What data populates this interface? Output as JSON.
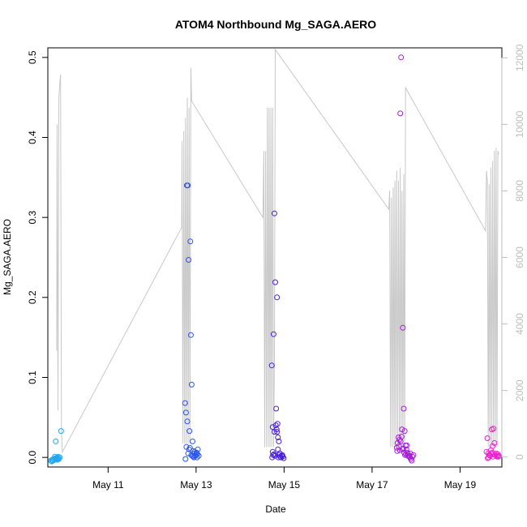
{
  "chart_data": {
    "type": "scatter",
    "title": "ATOM4 Northbound Mg_SAGA.AERO",
    "xlabel": "Date",
    "ylabel": "Mg_SAGA.AERO",
    "x_unit": "day of May 2018 (fractional)",
    "xlim": [
      9.63,
      19.95
    ],
    "ylim": [
      -0.012,
      0.512
    ],
    "x_ticks": [
      {
        "value": 11,
        "label": "May 11"
      },
      {
        "value": 13,
        "label": "May 13"
      },
      {
        "value": 15,
        "label": "May 15"
      },
      {
        "value": 17,
        "label": "May 17"
      },
      {
        "value": 19,
        "label": "May 19"
      }
    ],
    "y_ticks": [
      {
        "value": 0.0,
        "label": "0.0"
      },
      {
        "value": 0.1,
        "label": "0.1"
      },
      {
        "value": 0.2,
        "label": "0.2"
      },
      {
        "value": 0.3,
        "label": "0.3"
      },
      {
        "value": 0.4,
        "label": "0.4"
      },
      {
        "value": 0.5,
        "label": "0.5"
      }
    ],
    "y2lim": [
      -300,
      12300
    ],
    "y2_ticks": [
      {
        "value": 0,
        "label": "0"
      },
      {
        "value": 2000,
        "label": "2000"
      },
      {
        "value": 4000,
        "label": "4000"
      },
      {
        "value": 6000,
        "label": "6000"
      },
      {
        "value": 8000,
        "label": "8000"
      },
      {
        "value": 10000,
        "label": "10000"
      },
      {
        "value": 12000,
        "label": "12000"
      }
    ],
    "grid": false,
    "legend": "none",
    "colors": {
      "secondary_line": "#c8c8c8",
      "secondary_axis": "#bdbdbd",
      "flight_colors": [
        "#22a7f0",
        "#2a55ee",
        "#4a1fd6",
        "#a51ed6",
        "#f01ecf"
      ]
    },
    "secondary_series": {
      "type": "line",
      "x": [
        9.83,
        9.84,
        9.86,
        9.88,
        9.9,
        9.92,
        9.94,
        9.96,
        12.67,
        12.68,
        12.7,
        12.72,
        12.74,
        12.76,
        12.78,
        12.8,
        12.82,
        12.84,
        12.86,
        12.88,
        12.9,
        14.52,
        14.54,
        14.56,
        14.58,
        14.6,
        14.62,
        14.64,
        14.66,
        14.68,
        14.7,
        14.72,
        14.74,
        14.76,
        14.78,
        14.8,
        17.38,
        17.4,
        17.42,
        17.44,
        17.46,
        17.48,
        17.5,
        17.52,
        17.54,
        17.56,
        17.58,
        17.6,
        17.62,
        17.64,
        17.66,
        17.68,
        17.7,
        17.72,
        17.74,
        17.76,
        19.58,
        19.6,
        19.62,
        19.64,
        19.66,
        19.68,
        19.7,
        19.72,
        19.74,
        19.76,
        19.78,
        19.8,
        19.82,
        19.84,
        19.86,
        19.88
      ],
      "y": [
        3200,
        10000,
        1400,
        10800,
        11200,
        11500,
        800,
        150,
        6900,
        9500,
        400,
        9800,
        400,
        10200,
        400,
        10800,
        400,
        10500,
        400,
        11700,
        10700,
        7200,
        9200,
        300,
        9200,
        300,
        10500,
        300,
        10500,
        300,
        10500,
        300,
        10500,
        300,
        3000,
        12250,
        7450,
        8000,
        300,
        7800,
        300,
        8100,
        300,
        8300,
        300,
        8600,
        300,
        8300,
        300,
        8700,
        300,
        8000,
        300,
        8500,
        300,
        11100,
        6800,
        8600,
        8300,
        300,
        8200,
        300,
        8700,
        300,
        8900,
        300,
        9200,
        300,
        9300,
        300,
        9200,
        9100
      ]
    },
    "series": [
      {
        "x": [
          9.7,
          9.73,
          9.76,
          9.78,
          9.8,
          9.82,
          9.84,
          9.86,
          9.88,
          9.9,
          9.72,
          9.79,
          9.85,
          9.81,
          9.83,
          9.87,
          9.75,
          9.93
        ],
        "y": [
          -0.004,
          -0.003,
          -0.002,
          -0.003,
          -0.001,
          -0.002,
          0.0,
          -0.001,
          -0.002,
          0.0,
          -0.005,
          0.001,
          -0.003,
          0.02,
          -0.001,
          0.001,
          -0.004,
          0.033
        ]
      },
      {
        "x": [
          12.75,
          12.77,
          12.79,
          12.8,
          12.81,
          12.83,
          12.85,
          12.87,
          12.88,
          12.84,
          12.86,
          12.9,
          12.92,
          12.94,
          12.96,
          12.98,
          13.0,
          13.02,
          13.04,
          13.06,
          12.78,
          12.82,
          12.89,
          12.95,
          13.01,
          12.76,
          12.93,
          13.03,
          12.97,
          12.91
        ],
        "y": [
          0.068,
          0.056,
          0.34,
          0.045,
          0.34,
          0.247,
          0.033,
          0.27,
          0.153,
          0.01,
          0.012,
          0.091,
          0.02,
          0.008,
          0.005,
          0.002,
          0.004,
          0.0,
          0.01,
          0.002,
          0.013,
          0.005,
          0.003,
          0.0,
          0.006,
          -0.002,
          0.001,
          0.004,
          0.007,
          0.002
        ]
      },
      {
        "x": [
          14.72,
          14.74,
          14.76,
          14.78,
          14.8,
          14.82,
          14.84,
          14.86,
          14.88,
          14.9,
          14.73,
          14.75,
          14.77,
          14.79,
          14.81,
          14.83,
          14.85,
          14.87,
          14.89,
          14.91,
          14.93,
          14.95,
          14.97,
          14.99,
          14.78,
          14.84,
          14.9,
          14.96,
          14.74,
          14.86
        ],
        "y": [
          0.115,
          0.038,
          0.154,
          0.305,
          0.219,
          0.061,
          0.2,
          0.025,
          0.02,
          0.005,
          0.0,
          0.003,
          0.004,
          0.002,
          0.04,
          0.035,
          0.042,
          0.0,
          0.003,
          0.001,
          0.0,
          0.002,
          0.001,
          -0.001,
          0.032,
          0.032,
          0.005,
          0.003,
          0.007,
          0.01
        ]
      },
      {
        "x": [
          17.56,
          17.58,
          17.6,
          17.62,
          17.64,
          17.66,
          17.68,
          17.7,
          17.72,
          17.74,
          17.76,
          17.78,
          17.8,
          17.82,
          17.84,
          17.86,
          17.88,
          17.9,
          17.92,
          17.94,
          17.57,
          17.61,
          17.65,
          17.69,
          17.73,
          17.77,
          17.81,
          17.85,
          17.63,
          17.75,
          17.79,
          17.67,
          17.87,
          17.71
        ],
        "y": [
          0.012,
          0.018,
          0.025,
          0.022,
          0.43,
          0.5,
          0.035,
          0.162,
          0.061,
          0.033,
          0.015,
          0.01,
          0.006,
          0.004,
          0.002,
          0.0,
          -0.002,
          -0.004,
          0.001,
          0.003,
          0.008,
          0.014,
          0.02,
          0.01,
          0.006,
          0.004,
          0.002,
          0.001,
          0.009,
          0.003,
          0.015,
          0.026,
          0.005,
          0.011
        ]
      },
      {
        "x": [
          19.6,
          19.62,
          19.64,
          19.66,
          19.68,
          19.7,
          19.72,
          19.74,
          19.76,
          19.78,
          19.8,
          19.82,
          19.84,
          19.86,
          19.88,
          19.63,
          19.67,
          19.71,
          19.75,
          19.79,
          19.83,
          19.87,
          19.65,
          19.73
        ],
        "y": [
          0.007,
          0.024,
          0.005,
          0.003,
          0.002,
          0.009,
          0.035,
          0.014,
          0.036,
          0.018,
          0.003,
          0.005,
          0.001,
          0.004,
          0.002,
          -0.001,
          0.003,
          0.005,
          0.001,
          0.003,
          0.002,
          0.001,
          0.0,
          0.006
        ]
      }
    ]
  }
}
